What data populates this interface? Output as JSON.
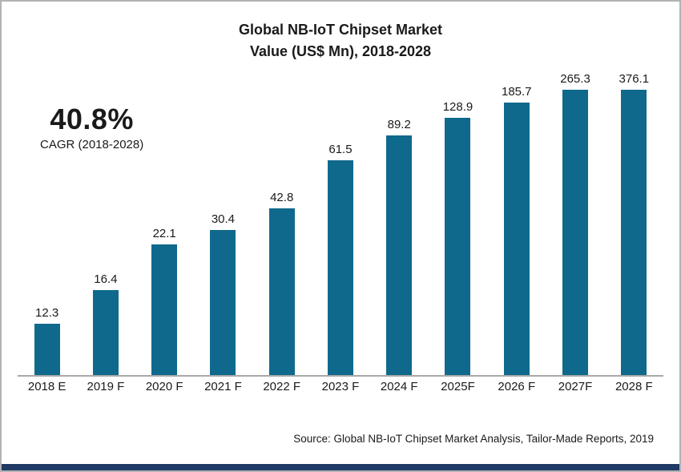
{
  "title": {
    "line1": "Global NB-IoT Chipset Market",
    "line2": "Value (US$ Mn), 2018-2028"
  },
  "cagr": {
    "value": "40.8%",
    "label": "CAGR (2018-2028)"
  },
  "source": "Source: Global NB-IoT Chipset Market Analysis, Tailor-Made Reports, 2019",
  "colors": {
    "bar": "#0f698c",
    "footer_bar": "#203a66",
    "axis": "#a9a9a9",
    "border": "#b3b3b3"
  },
  "chart_data": {
    "type": "bar",
    "title": "Global NB-IoT Chipset Market Value (US$ Mn), 2018-2028",
    "categories": [
      "2018 E",
      "2019 F",
      "2020 F",
      "2021 F",
      "2022 F",
      "2023 F",
      "2024 F",
      "2025F",
      "2026 F",
      "2027F",
      "2028 F"
    ],
    "values": [
      12.3,
      16.4,
      22.1,
      30.4,
      42.8,
      61.5,
      89.2,
      128.9,
      185.7,
      265.3,
      376.1
    ],
    "xlabel": "",
    "ylabel": "",
    "grid": false,
    "legend": "none",
    "value_labels_shown": true,
    "annotation": "40.8% CAGR (2018-2028)",
    "bar_height_pct": [
      17,
      28,
      43,
      48,
      55,
      71,
      79,
      85,
      90,
      96,
      100
    ]
  }
}
